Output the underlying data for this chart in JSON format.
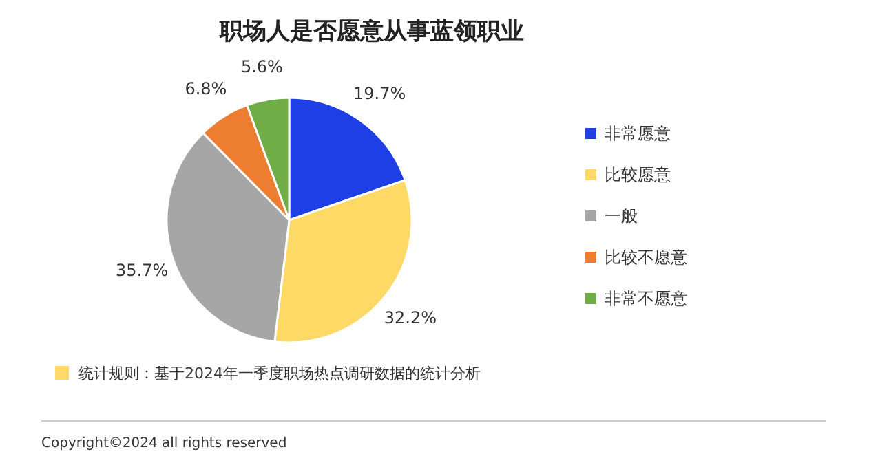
{
  "chart_data": {
    "type": "pie",
    "title": "职场人是否愿意从事蓝领职业",
    "categories": [
      "非常愿意",
      "比较愿意",
      "一般",
      "比较不愿意",
      "非常不愿意"
    ],
    "values": [
      19.7,
      32.2,
      35.7,
      6.8,
      5.6
    ],
    "colors": [
      "#1f3fe6",
      "#ffd966",
      "#a6a6a6",
      "#ed7d31",
      "#70ad47"
    ],
    "value_labels": [
      "19.7%",
      "32.2%",
      "35.7%",
      "6.8%",
      "5.6%"
    ],
    "legend": "right",
    "annotations": [
      "统计规则：基于2024年一季度职场热点调研数据的统计分析",
      "Copyright©2024 all rights reserved"
    ]
  }
}
